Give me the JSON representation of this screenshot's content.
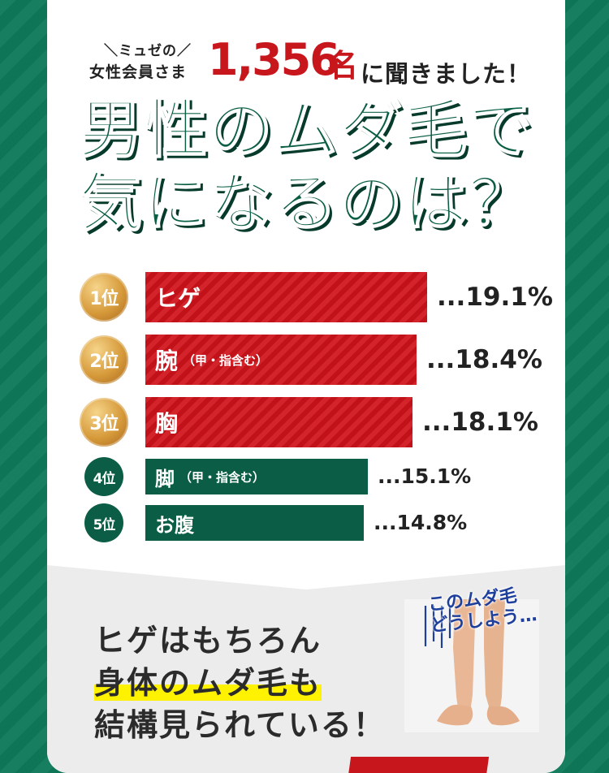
{
  "survey": {
    "tag": "＼ミュゼの／",
    "members": "女性会員さま",
    "count": "1,356",
    "count_unit": "名",
    "asked": "に聞きました！"
  },
  "headline": {
    "line1": "男性のムダ毛で",
    "line2": "気になるのは？"
  },
  "chart_data": {
    "type": "bar",
    "categories": [
      "ヒゲ",
      "腕（甲・指含む）",
      "胸",
      "脚（甲・指含む）",
      "お腹"
    ],
    "values": [
      19.1,
      18.4,
      18.1,
      15.1,
      14.8
    ],
    "unit": "%"
  },
  "ranking": [
    {
      "rank": "1位",
      "label": "ヒゲ",
      "sub": "",
      "value_text": "...19.1%",
      "value": 19.1,
      "style": "gold"
    },
    {
      "rank": "2位",
      "label": "腕",
      "sub": "（甲・指含む）",
      "value_text": "...18.4%",
      "value": 18.4,
      "style": "gold"
    },
    {
      "rank": "3位",
      "label": "胸",
      "sub": "",
      "value_text": "...18.1%",
      "value": 18.1,
      "style": "gold"
    },
    {
      "rank": "4位",
      "label": "脚",
      "sub": "（甲・指含む）",
      "value_text": "...15.1%",
      "value": 15.1,
      "style": "green"
    },
    {
      "rank": "5位",
      "label": "お腹",
      "sub": "",
      "value_text": "...14.8%",
      "value": 14.8,
      "style": "green"
    }
  ],
  "note": {
    "line1": "ヒゲはもちろん",
    "line2": "身体のムダ毛も",
    "line3": "結構見られている！"
  },
  "photo_caption": {
    "line1": "このムダ毛",
    "line2": "どうしよう…"
  },
  "colors": {
    "background": "#0f7a5a",
    "accent_red": "#d0121b",
    "accent_green": "#0b5e45",
    "highlight": "#fff200"
  }
}
